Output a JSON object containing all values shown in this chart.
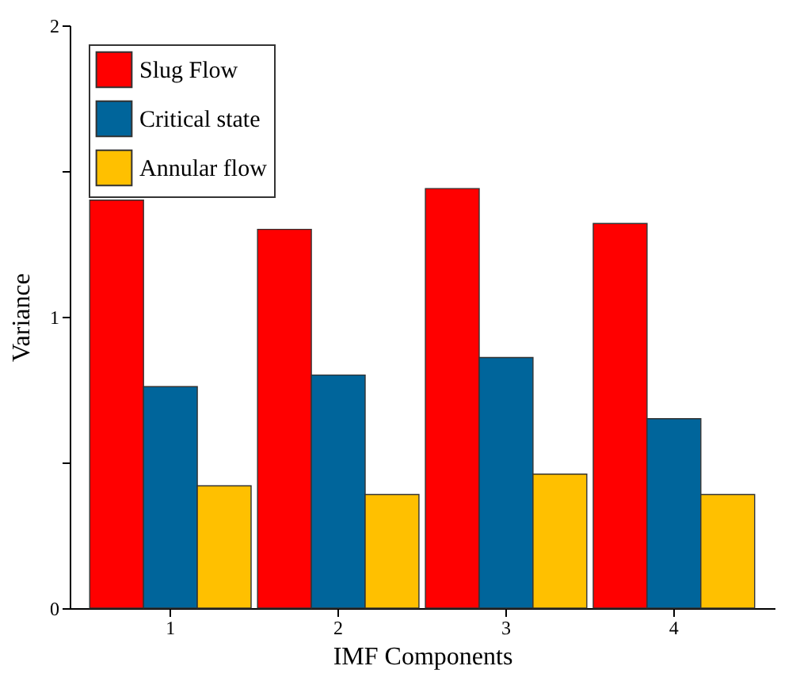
{
  "chart_data": {
    "type": "bar",
    "xlabel": "IMF Components",
    "ylabel": "Variance",
    "categories": [
      "1",
      "2",
      "3",
      "4"
    ],
    "series": [
      {
        "name": "Slug Flow",
        "color": "#ff0000",
        "values": [
          1.4,
          1.3,
          1.44,
          1.32
        ]
      },
      {
        "name": "Critical state",
        "color": "#00659b",
        "values": [
          0.76,
          0.8,
          0.86,
          0.65
        ]
      },
      {
        "name": "Annular flow",
        "color": "#ffc000",
        "values": [
          0.42,
          0.39,
          0.46,
          0.39
        ]
      }
    ],
    "ylim": [
      0,
      2
    ],
    "yticks": [
      0,
      {
        "value": 0.5,
        "label": null
      },
      1,
      {
        "value": 1.5,
        "label": null
      },
      2
    ],
    "grid": false,
    "legend": "top left"
  }
}
